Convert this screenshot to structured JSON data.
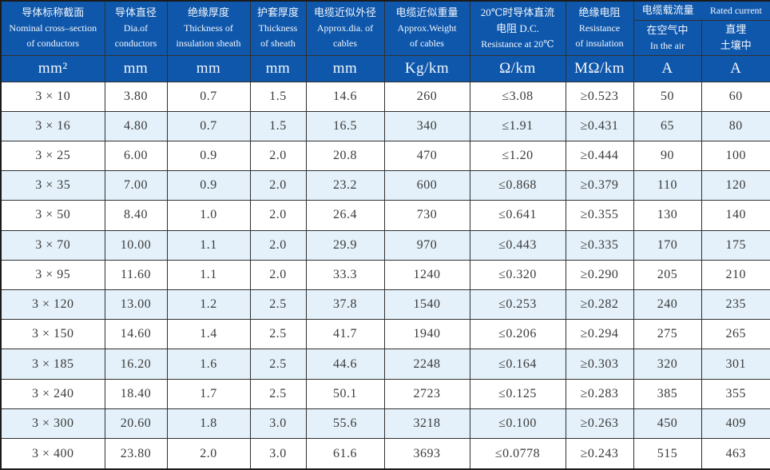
{
  "table": {
    "description": "Cable specification table (Chinese/English bilingual)",
    "colors": {
      "header_bg": "#0f57ab",
      "header_text": "#f2f7fd",
      "alt_row_bg": "#e4f1fa",
      "grid_line": "#303030",
      "body_text": "#3b3b3b"
    },
    "header": {
      "columns": [
        {
          "lines": [
            "导体标称截面",
            "Nominal cross–section",
            "of conductors"
          ],
          "unit": "mm²"
        },
        {
          "lines": [
            "导体直径",
            "Dia.of",
            "conductors"
          ],
          "unit": "mm"
        },
        {
          "lines": [
            "绝缘厚度",
            "Thickness of",
            "insulation sheath"
          ],
          "unit": "mm"
        },
        {
          "lines": [
            "护套厚度",
            "Thickness",
            "of sheath"
          ],
          "unit": "mm"
        },
        {
          "lines": [
            "电缆近似外径",
            "Approx.dia. of",
            "cables"
          ],
          "unit": "mm"
        },
        {
          "lines": [
            "电缆近似重量",
            "Approx.Weight",
            "of cables"
          ],
          "unit": "Kg/km"
        },
        {
          "lines": [
            "20℃时导体直流",
            "电阻 D.C.",
            "Resistance at 20℃"
          ],
          "unit": "Ω/km"
        },
        {
          "lines": [
            "绝缘电阻",
            "Resistance",
            "of insulation"
          ],
          "unit": "MΩ/km"
        }
      ],
      "current_group": {
        "title_zh": "电缆载流量",
        "title_en": "Rated current",
        "sub_columns": [
          {
            "lines": [
              "在空气中",
              "In the air"
            ],
            "unit": "A"
          },
          {
            "lines": [
              "直埋",
              "土壤中"
            ],
            "unit": "A"
          }
        ]
      }
    },
    "rows": [
      [
        "3 × 10",
        "3.80",
        "0.7",
        "1.5",
        "14.6",
        "260",
        "≤3.08",
        "≥0.523",
        "50",
        "60"
      ],
      [
        "3 × 16",
        "4.80",
        "0.7",
        "1.5",
        "16.5",
        "340",
        "≤1.91",
        "≥0.431",
        "65",
        "80"
      ],
      [
        "3 × 25",
        "6.00",
        "0.9",
        "2.0",
        "20.8",
        "470",
        "≤1.20",
        "≥0.444",
        "90",
        "100"
      ],
      [
        "3 × 35",
        "7.00",
        "0.9",
        "2.0",
        "23.2",
        "600",
        "≤0.868",
        "≥0.379",
        "110",
        "120"
      ],
      [
        "3 × 50",
        "8.40",
        "1.0",
        "2.0",
        "26.4",
        "730",
        "≤0.641",
        "≥0.355",
        "130",
        "140"
      ],
      [
        "3 × 70",
        "10.00",
        "1.1",
        "2.0",
        "29.9",
        "970",
        "≤0.443",
        "≥0.335",
        "170",
        "175"
      ],
      [
        "3 × 95",
        "11.60",
        "1.1",
        "2.0",
        "33.3",
        "1240",
        "≤0.320",
        "≥0.290",
        "205",
        "210"
      ],
      [
        "3 × 120",
        "13.00",
        "1.2",
        "2.5",
        "37.8",
        "1540",
        "≤0.253",
        "≥0.282",
        "240",
        "235"
      ],
      [
        "3 × 150",
        "14.60",
        "1.4",
        "2.5",
        "41.7",
        "1940",
        "≤0.206",
        "≥0.294",
        "275",
        "265"
      ],
      [
        "3 × 185",
        "16.20",
        "1.6",
        "2.5",
        "44.6",
        "2248",
        "≤0.164",
        "≥0.303",
        "320",
        "301"
      ],
      [
        "3 × 240",
        "18.40",
        "1.7",
        "2.5",
        "50.1",
        "2723",
        "≤0.125",
        "≥0.283",
        "385",
        "355"
      ],
      [
        "3 × 300",
        "20.60",
        "1.8",
        "3.0",
        "55.6",
        "3218",
        "≤0.100",
        "≥0.263",
        "450",
        "409"
      ],
      [
        "3 × 400",
        "23.80",
        "2.0",
        "3.0",
        "61.6",
        "3693",
        "≤0.0778",
        "≥0.243",
        "515",
        "463"
      ]
    ]
  }
}
